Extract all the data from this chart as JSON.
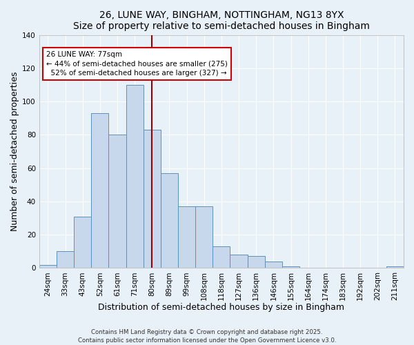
{
  "title1": "26, LUNE WAY, BINGHAM, NOTTINGHAM, NG13 8YX",
  "title2": "Size of property relative to semi-detached houses in Bingham",
  "xlabel": "Distribution of semi-detached houses by size in Bingham",
  "ylabel": "Number of semi-detached properties",
  "categories": [
    "24sqm",
    "33sqm",
    "43sqm",
    "52sqm",
    "61sqm",
    "71sqm",
    "80sqm",
    "89sqm",
    "99sqm",
    "108sqm",
    "118sqm",
    "127sqm",
    "136sqm",
    "146sqm",
    "155sqm",
    "164sqm",
    "174sqm",
    "183sqm",
    "192sqm",
    "202sqm",
    "211sqm"
  ],
  "values": [
    2,
    10,
    31,
    93,
    80,
    110,
    83,
    57,
    37,
    37,
    13,
    8,
    7,
    4,
    1,
    0,
    0,
    0,
    0,
    1
  ],
  "property_label": "26 LUNE WAY: 77sqm",
  "smaller_pct": 44,
  "smaller_count": 275,
  "larger_pct": 52,
  "larger_count": 327,
  "vline_bin_index": 6,
  "bar_color": "#c8d8ec",
  "bar_edge_color": "#6090b8",
  "vline_color": "#990000",
  "annotation_box_color": "#ffffff",
  "annotation_box_edge": "#cc0000",
  "background_color": "#e8f0f8",
  "grid_color": "#ffffff",
  "footer1": "Contains HM Land Registry data © Crown copyright and database right 2025.",
  "footer2": "Contains public sector information licensed under the Open Government Licence v3.0.",
  "ylim": [
    0,
    140
  ],
  "title_fontsize": 10,
  "axis_fontsize": 9,
  "tick_fontsize": 7.5
}
